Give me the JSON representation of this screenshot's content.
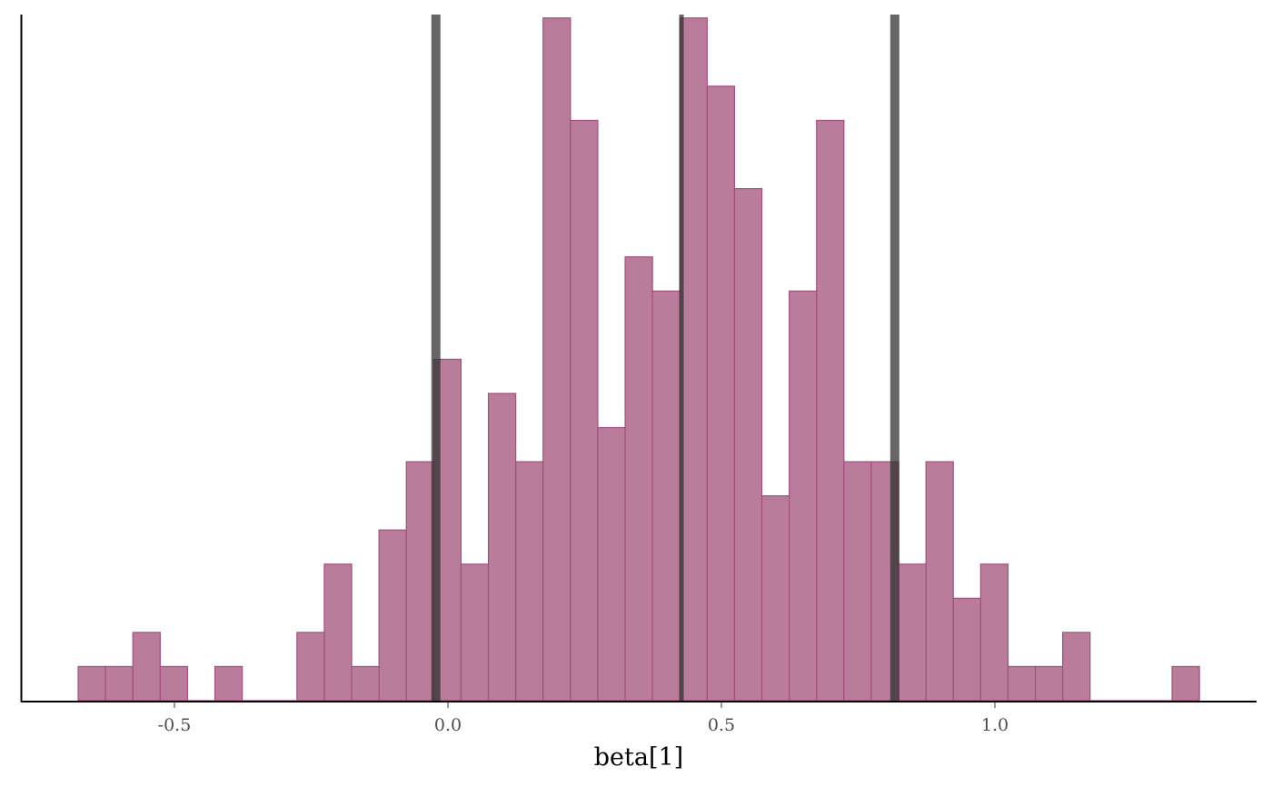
{
  "chart_data": {
    "type": "bar",
    "subtype": "histogram",
    "title": "",
    "xlabel": "beta[1]",
    "ylabel": "",
    "xlim": [
      -0.78,
      1.47
    ],
    "ylim": [
      0,
      20.1
    ],
    "grid": false,
    "legend": "none",
    "x_ticks": [
      -0.5,
      0.0,
      0.5,
      1.0
    ],
    "x_tick_labels": [
      "-0.5",
      "0.0",
      "0.5",
      "1.0"
    ],
    "bin_start": -0.676,
    "bin_width": 0.05,
    "counts": [
      1,
      1,
      2,
      1,
      0,
      1,
      0,
      0,
      2,
      4,
      1,
      5,
      7,
      10,
      4,
      9,
      7,
      20,
      17,
      8,
      13,
      12,
      20,
      18,
      15,
      6,
      12,
      17,
      7,
      7,
      4,
      7,
      3,
      4,
      1,
      1,
      2,
      0,
      0,
      0,
      1
    ],
    "vertical_lines": [
      {
        "x": -0.022,
        "role": "interval-lower"
      },
      {
        "x": 0.427,
        "role": "median"
      },
      {
        "x": 0.817,
        "role": "interval-upper"
      }
    ],
    "colors": {
      "bar_fill": "#b97c9b",
      "bar_stroke": "#a25080",
      "line": "#333333"
    }
  }
}
